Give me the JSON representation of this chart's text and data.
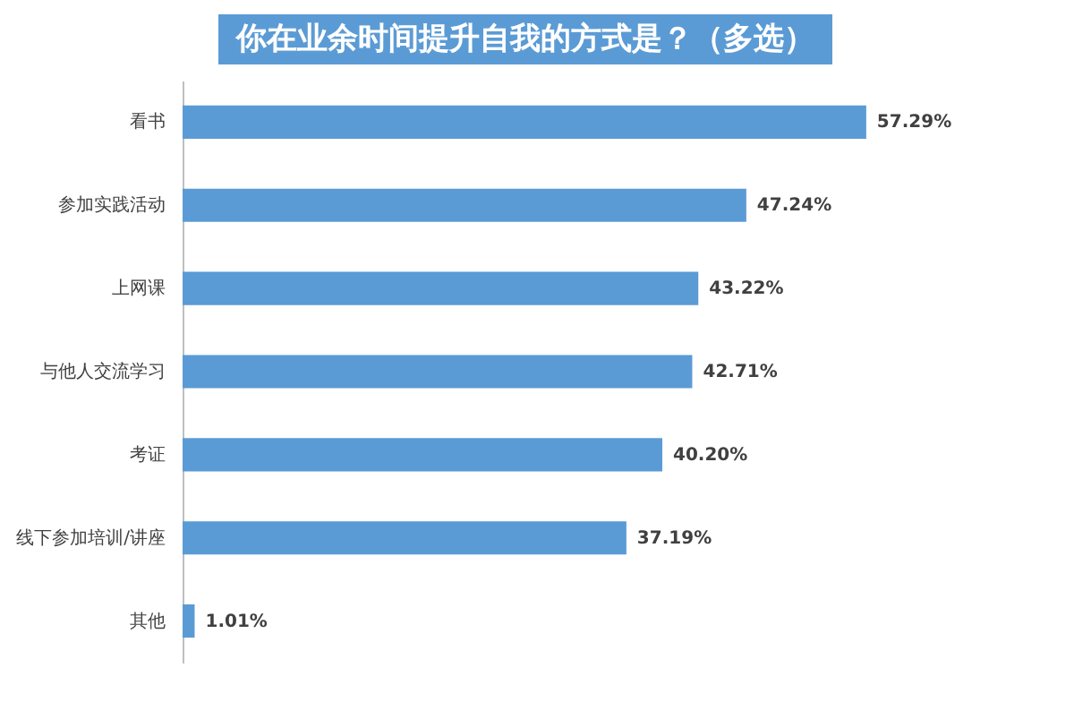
{
  "chart_data": {
    "type": "bar",
    "orientation": "horizontal",
    "title": "你在业余时间提升自我的方式是？（多选）",
    "categories": [
      "看书",
      "参加实践活动",
      "上网课",
      "与他人交流学习",
      "考证",
      "线下参加培训/讲座",
      "其他"
    ],
    "values": [
      57.29,
      47.24,
      43.22,
      42.71,
      40.2,
      37.19,
      1.01
    ],
    "value_labels": [
      "57.29%",
      "47.24%",
      "43.22%",
      "42.71%",
      "40.20%",
      "37.19%",
      "1.01%"
    ],
    "color": "#5b9bd5"
  }
}
